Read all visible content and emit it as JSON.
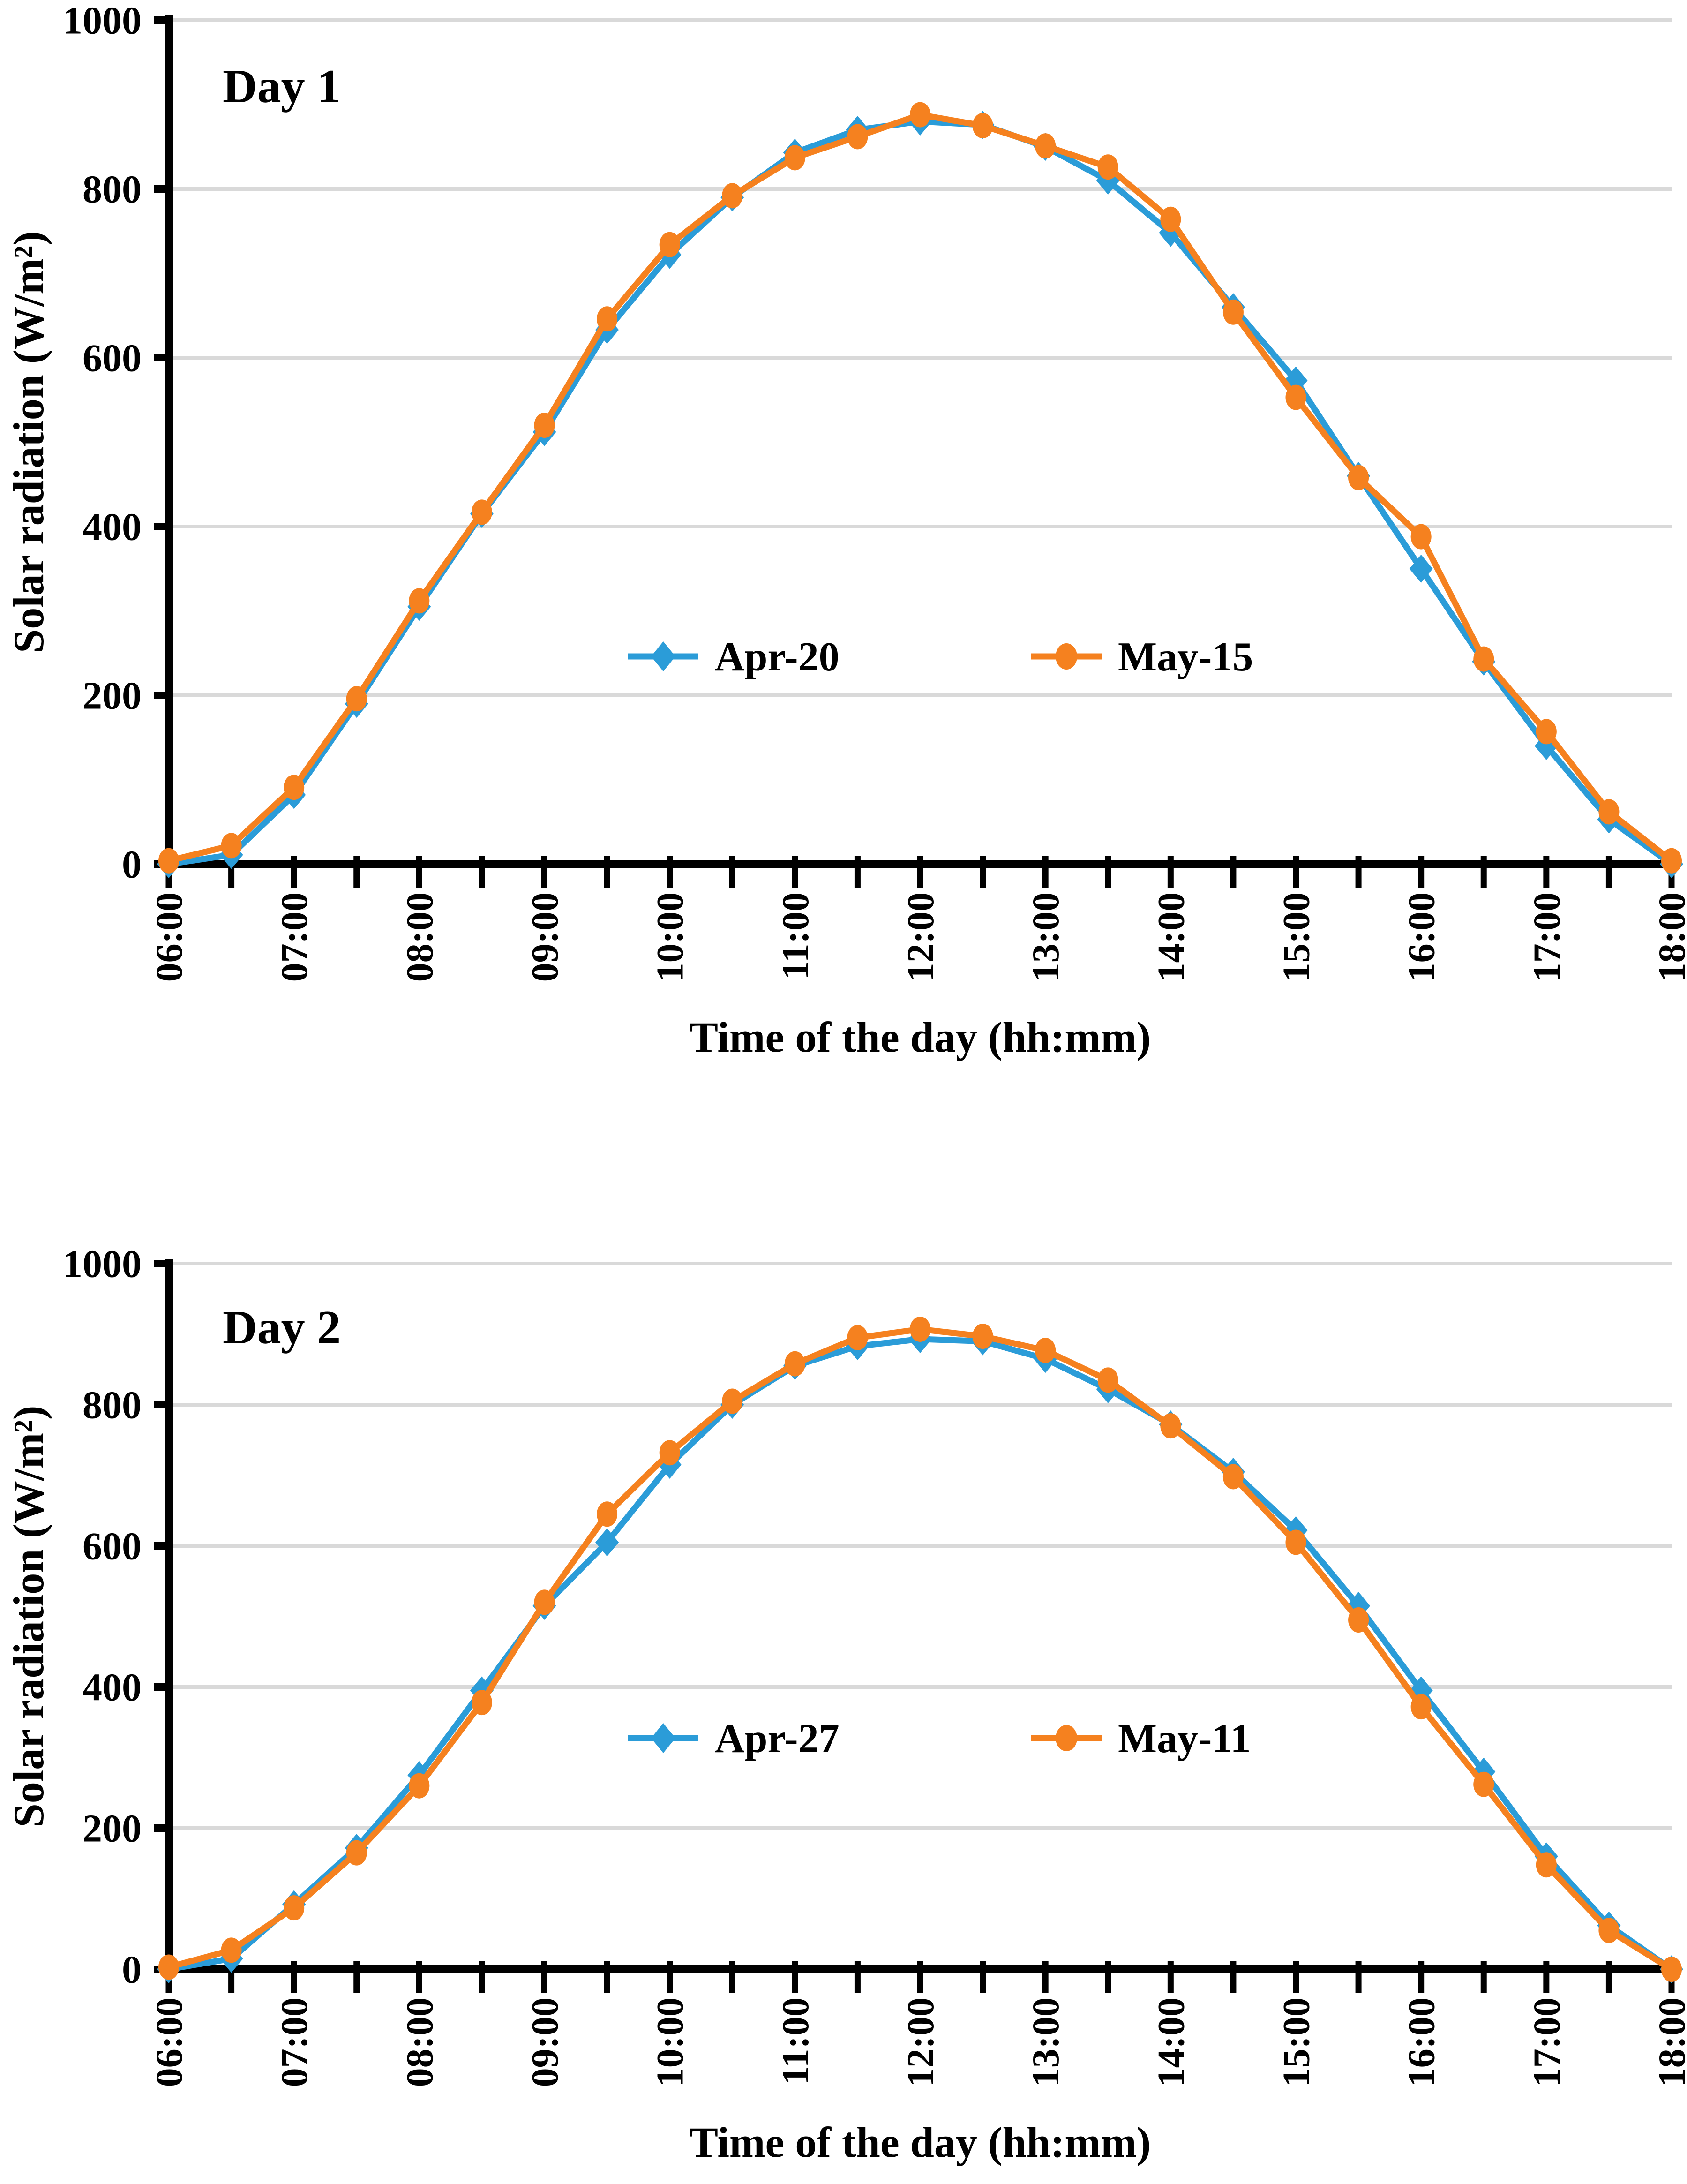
{
  "page": {
    "background": "#ffffff",
    "figure_kind": "two stacked line charts of solar radiation vs time of day"
  },
  "theme": {
    "blue": "#2B9CD8",
    "orange": "#F5811F",
    "gridline": "#D9D9D9",
    "axis": "#000000",
    "text": "#000000"
  },
  "chart_data": [
    {
      "type": "line",
      "title": "Day 1",
      "xlabel": "Time of the day (hh:mm)",
      "ylabel": "Solar radiation (W/m²)",
      "ylim": [
        0,
        1000
      ],
      "ytick_interval": 200,
      "ytick_labels": [
        "0",
        "200",
        "400",
        "600",
        "800",
        "1000"
      ],
      "grid": "horizontal",
      "legend_position": "inside-center",
      "x_categories": [
        "06:00",
        "06:30",
        "07:00",
        "07:30",
        "08:00",
        "08:30",
        "09:00",
        "09:30",
        "10:00",
        "10:30",
        "11:00",
        "11:30",
        "12:00",
        "12:30",
        "13:00",
        "13:30",
        "14:00",
        "14:30",
        "15:00",
        "15:30",
        "16:00",
        "16:30",
        "17:00",
        "17:30",
        "18:00"
      ],
      "xtick_labels": [
        "06:00",
        "07:00",
        "08:00",
        "09:00",
        "10:00",
        "11:00",
        "12:00",
        "13:00",
        "14:00",
        "15:00",
        "16:00",
        "17:00",
        "18:00"
      ],
      "series": [
        {
          "name": "Apr-20",
          "marker": "diamond",
          "color_key": "blue",
          "values": [
            0,
            11,
            82,
            190,
            305,
            415,
            512,
            633,
            722,
            790,
            843,
            870,
            880,
            876,
            850,
            810,
            748,
            660,
            573,
            460,
            350,
            240,
            140,
            53,
            0
          ]
        },
        {
          "name": "May-15",
          "marker": "circle",
          "color_key": "orange",
          "values": [
            4,
            22,
            91,
            196,
            312,
            417,
            520,
            646,
            734,
            792,
            837,
            862,
            888,
            875,
            851,
            826,
            764,
            654,
            553,
            458,
            388,
            243,
            157,
            62,
            4
          ]
        }
      ]
    },
    {
      "type": "line",
      "title": "Day 2",
      "xlabel": "Time of the day (hh:mm)",
      "ylabel": "Solar radiation (W/m²)",
      "ylim": [
        0,
        1000
      ],
      "ytick_interval": 200,
      "ytick_labels": [
        "0",
        "200",
        "400",
        "600",
        "800",
        "1000"
      ],
      "grid": "horizontal",
      "legend_position": "inside-center",
      "x_categories": [
        "06:00",
        "06:30",
        "07:00",
        "07:30",
        "08:00",
        "08:30",
        "09:00",
        "09:30",
        "10:00",
        "10:30",
        "11:00",
        "11:30",
        "12:00",
        "12:30",
        "13:00",
        "13:30",
        "14:00",
        "14:30",
        "15:00",
        "15:30",
        "16:00",
        "16:30",
        "17:00",
        "17:30",
        "18:00"
      ],
      "xtick_labels": [
        "06:00",
        "07:00",
        "08:00",
        "09:00",
        "10:00",
        "11:00",
        "12:00",
        "13:00",
        "14:00",
        "15:00",
        "16:00",
        "17:00",
        "18:00"
      ],
      "series": [
        {
          "name": "Apr-27",
          "marker": "diamond",
          "color_key": "blue",
          "values": [
            0,
            15,
            92,
            172,
            275,
            395,
            515,
            605,
            715,
            800,
            855,
            883,
            893,
            890,
            865,
            822,
            772,
            705,
            622,
            515,
            395,
            280,
            160,
            62,
            0
          ]
        },
        {
          "name": "May-11",
          "marker": "circle",
          "color_key": "orange",
          "values": [
            3,
            27,
            87,
            165,
            260,
            378,
            520,
            645,
            732,
            805,
            858,
            895,
            907,
            897,
            877,
            835,
            770,
            698,
            605,
            495,
            372,
            262,
            148,
            55,
            0
          ]
        }
      ]
    }
  ]
}
